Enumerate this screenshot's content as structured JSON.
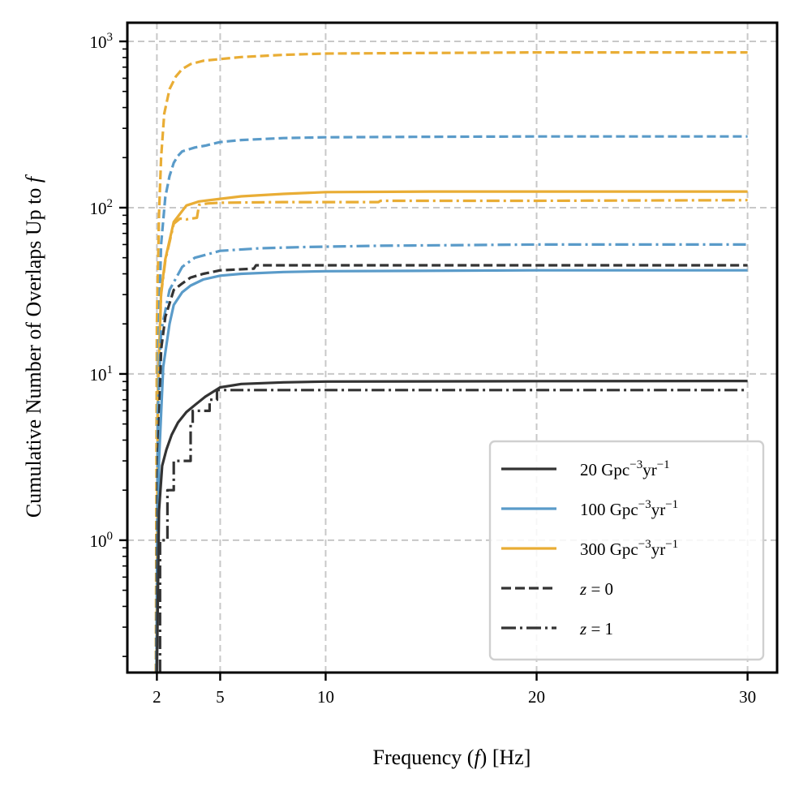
{
  "chart_data": {
    "type": "line",
    "title": "",
    "xlabel": "Frequency (f) [Hz]",
    "ylabel": "Cumulative Number of Overlaps Up to f",
    "xscale": "linear",
    "yscale": "log",
    "xlim": [
      0.6,
      31.4
    ],
    "ylim": [
      0.16,
      1295
    ],
    "xticks": [
      2,
      5,
      10,
      20,
      30
    ],
    "xtick_labels": [
      "2",
      "5",
      "10",
      "20",
      "30"
    ],
    "yticks": [
      1,
      10,
      100,
      1000
    ],
    "ytick_labels": [
      {
        "base": "10",
        "exp": "0"
      },
      {
        "base": "10",
        "exp": "1"
      },
      {
        "base": "10",
        "exp": "2"
      },
      {
        "base": "10",
        "exp": "3"
      }
    ],
    "grid": true,
    "legend_position": "lower-right",
    "legend": [
      {
        "label": "20 Gpc",
        "sup1": "−3",
        "mid": "yr",
        "sup2": "−1",
        "color": "#333333",
        "style": "solid"
      },
      {
        "label": "100 Gpc",
        "sup1": "−3",
        "mid": "yr",
        "sup2": "−1",
        "color": "#5a9bc9",
        "style": "solid"
      },
      {
        "label": "300 Gpc",
        "sup1": "−3",
        "mid": "yr",
        "sup2": "−1",
        "color": "#e9ad35",
        "style": "solid"
      },
      {
        "label": "z = 0",
        "color": "#333333",
        "style": "dashed"
      },
      {
        "label": "z = 1",
        "color": "#333333",
        "style": "dashdot"
      }
    ],
    "series": [
      {
        "name": "300 Gpc^-3 yr^-1, z = 0",
        "color": "#e9ad35",
        "style": "dashed",
        "x": [
          1.95,
          2.0,
          2.1,
          2.2,
          2.35,
          2.6,
          2.9,
          3.2,
          3.6,
          4.2,
          5,
          6,
          8,
          10,
          15,
          20,
          30
        ],
        "y": [
          0.16,
          20,
          90,
          200,
          368,
          516,
          615,
          682,
          730,
          765,
          783,
          805,
          830,
          845,
          852,
          858,
          858
        ]
      },
      {
        "name": "100 Gpc^-3 yr^-1, z = 0",
        "color": "#5a9bc9",
        "style": "dashed",
        "x": [
          1.97,
          2.05,
          2.2,
          2.4,
          2.6,
          2.8,
          3.0,
          3.2,
          3.8,
          4.3,
          5,
          6,
          8,
          10,
          15,
          20,
          30
        ],
        "y": [
          0.16,
          12,
          60,
          116,
          155,
          186,
          205,
          218,
          230,
          236,
          248,
          255,
          262,
          265,
          267,
          268,
          268
        ]
      },
      {
        "name": "300 Gpc^-3 yr^-1, solid",
        "color": "#e9ad35",
        "style": "solid",
        "x": [
          1.98,
          2.05,
          2.2,
          2.4,
          2.8,
          3.4,
          4.0,
          5,
          6,
          8,
          10,
          15,
          20,
          30
        ],
        "y": [
          0.16,
          8,
          31,
          49,
          82,
          103,
          109,
          113,
          117,
          121,
          124,
          125,
          125,
          125
        ]
      },
      {
        "name": "300 Gpc^-3 yr^-1, z = 1",
        "color": "#e9ad35",
        "style": "dashdot",
        "x": [
          1.98,
          2.05,
          2.2,
          2.4,
          2.8,
          3.1,
          3.4,
          3.9,
          4.0,
          4.4,
          5,
          8,
          12.5,
          12.6,
          20,
          30
        ],
        "y": [
          0.16,
          7,
          30,
          48,
          80,
          86,
          85,
          87,
          104,
          106,
          107,
          108,
          108,
          110,
          110,
          111
        ]
      },
      {
        "name": "100 Gpc^-3 yr^-1, z = 1",
        "color": "#5a9bc9",
        "style": "dashdot",
        "x": [
          1.98,
          2.05,
          2.2,
          2.6,
          3.2,
          3.8,
          4.3,
          5,
          6.9,
          9,
          12.6,
          20,
          30
        ],
        "y": [
          0.16,
          6,
          18,
          32,
          44,
          50,
          52,
          55,
          57,
          58,
          59,
          60,
          60
        ]
      },
      {
        "name": "20 Gpc^-3 yr^-1, z = 0",
        "color": "#333333",
        "style": "dashed",
        "x": [
          1.98,
          2.05,
          2.2,
          2.4,
          2.8,
          3.2,
          3.6,
          4.2,
          5,
          6.6,
          6.7,
          10,
          20,
          30
        ],
        "y": [
          0.16,
          3,
          14,
          22,
          32,
          35,
          38,
          40,
          42,
          43,
          45,
          45,
          45,
          45
        ]
      },
      {
        "name": "100 Gpc^-3 yr^-1, solid",
        "color": "#5a9bc9",
        "style": "solid",
        "x": [
          1.99,
          2.1,
          2.3,
          2.6,
          2.8,
          3.2,
          3.6,
          4.2,
          5,
          6,
          8,
          10,
          20,
          30
        ],
        "y": [
          0.16,
          3,
          11,
          20,
          26,
          31,
          34,
          37,
          39,
          40,
          41,
          41.5,
          42,
          42
        ]
      },
      {
        "name": "20 Gpc^-3 yr^-1, solid",
        "color": "#333333",
        "style": "solid",
        "x": [
          2.0,
          2.1,
          2.25,
          2.45,
          2.7,
          3.0,
          3.4,
          3.8,
          4.3,
          5,
          6,
          8,
          10,
          20,
          30
        ],
        "y": [
          0.16,
          1.5,
          2.8,
          3.5,
          4.3,
          5.1,
          5.9,
          6.5,
          7.3,
          8.3,
          8.7,
          8.9,
          9.0,
          9.05,
          9.07
        ]
      },
      {
        "name": "20 Gpc^-3 yr^-1, z = 1",
        "color": "#333333",
        "style": "dashdot",
        "x": [
          2.15,
          2.15,
          2.5,
          2.5,
          2.8,
          2.8,
          3.6,
          3.6,
          3.7,
          3.7,
          4.5,
          4.5,
          4.85,
          4.85,
          30
        ],
        "y": [
          0.16,
          1,
          1,
          2,
          2,
          3,
          3,
          5,
          5,
          6,
          6,
          7,
          7,
          8,
          8
        ]
      }
    ]
  }
}
